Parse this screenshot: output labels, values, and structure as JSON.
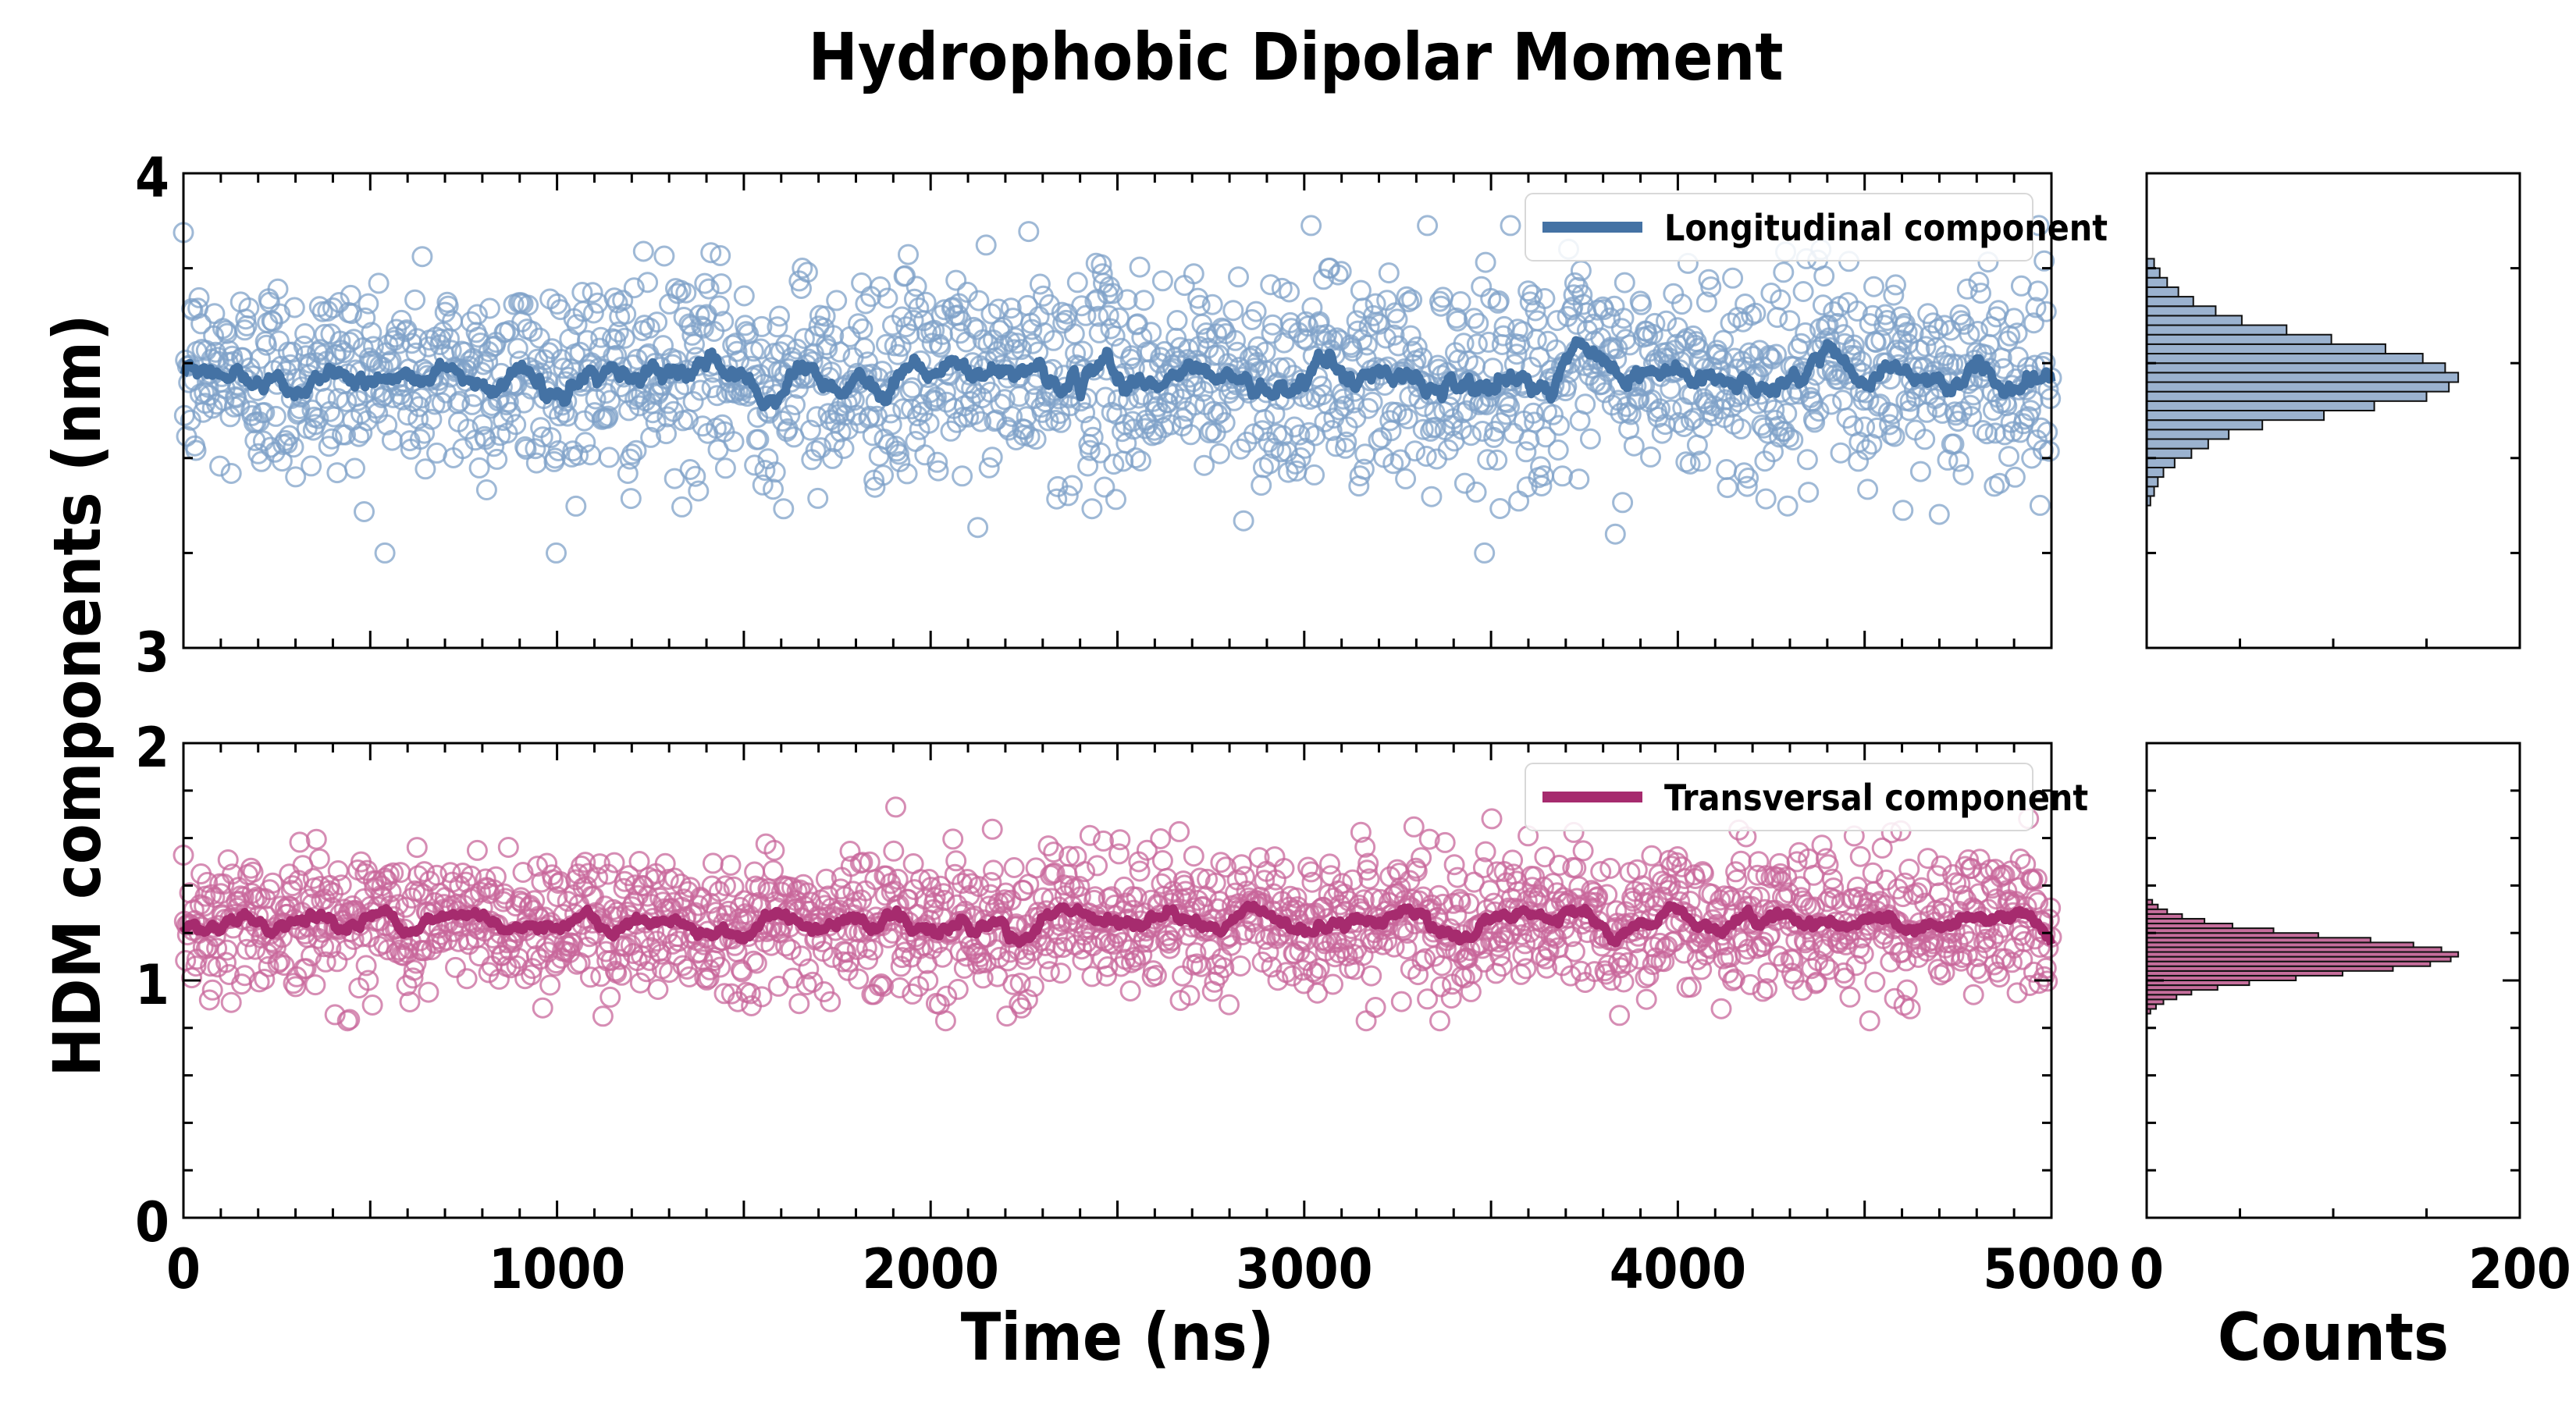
{
  "title": "Hydrophobic Dipolar Moment",
  "ylabel": "HDM components (nm)",
  "xlabel": "Time (ns)",
  "hist_xlabel": "Counts",
  "colors": {
    "longitudinal": "#4472a4",
    "longitudinal_marker": "#7fa2c8",
    "transversal": "#a62b6e",
    "transversal_marker": "#c8679b"
  },
  "chart_data": [
    {
      "type": "scatter",
      "panel": "top",
      "series_name": "Longitudinal component",
      "legend_placement": "top-right",
      "xlim": [
        0,
        5000
      ],
      "ylim": [
        3,
        4
      ],
      "yticks": [
        "3",
        "4"
      ],
      "x_range": [
        0,
        5000
      ],
      "n_points": 1800,
      "mean": 3.57,
      "sd": 0.11,
      "min": 3.2,
      "max": 3.89,
      "running_average_mean": 3.57
    },
    {
      "type": "scatter",
      "panel": "bottom",
      "series_name": "Transversal component",
      "legend_placement": "top-right",
      "xlim": [
        0,
        5000
      ],
      "ylim": [
        0,
        2
      ],
      "xticks": [
        "0",
        "1000",
        "2000",
        "3000",
        "4000",
        "5000"
      ],
      "yticks": [
        "0",
        "1",
        "2"
      ],
      "x_range": [
        0,
        5000
      ],
      "n_points": 1800,
      "mean": 1.25,
      "sd": 0.15,
      "min": 0.83,
      "max": 1.82,
      "running_average_mean": 1.25
    },
    {
      "type": "bar",
      "panel": "top-histogram",
      "orientation": "horizontal",
      "xlim": [
        0,
        200
      ],
      "bin_width": 0.02,
      "bin_start": 3.3,
      "counts": [
        2,
        4,
        6,
        9,
        15,
        24,
        33,
        44,
        62,
        95,
        122,
        150,
        162,
        167,
        160,
        148,
        128,
        99,
        75,
        51,
        37,
        25,
        17,
        11,
        7,
        4
      ]
    },
    {
      "type": "bar",
      "panel": "bottom-histogram",
      "orientation": "horizontal",
      "xlim": [
        0,
        200
      ],
      "xticks": [
        "0",
        "200"
      ],
      "bin_width": 0.02,
      "bin_start": 0.86,
      "counts": [
        2,
        5,
        9,
        16,
        24,
        38,
        55,
        80,
        105,
        132,
        152,
        163,
        167,
        158,
        143,
        120,
        92,
        68,
        46,
        31,
        19,
        11,
        6,
        3
      ]
    }
  ]
}
